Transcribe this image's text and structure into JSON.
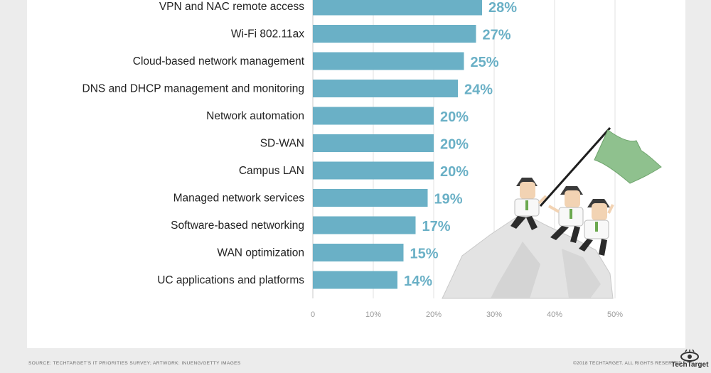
{
  "chart_data": {
    "type": "bar",
    "orientation": "horizontal",
    "categories": [
      "VPN and NAC remote access",
      "Wi-Fi 802.11ax",
      "Cloud-based network management",
      "DNS and DHCP management and monitoring",
      "Network automation",
      "SD-WAN",
      "Campus LAN",
      "Managed network services",
      "Software-based networking",
      "WAN optimization",
      "UC applications and platforms"
    ],
    "values": [
      28,
      27,
      25,
      24,
      20,
      20,
      20,
      19,
      17,
      15,
      14
    ],
    "value_labels": [
      "28%",
      "27%",
      "25%",
      "24%",
      "20%",
      "20%",
      "20%",
      "19%",
      "17%",
      "15%",
      "14%"
    ],
    "xlim": [
      0,
      50
    ],
    "xticks": [
      "0",
      "10%",
      "20%",
      "30%",
      "40%",
      "50%"
    ],
    "grid": true,
    "bar_color": "#6ab0c6",
    "label_color": "#6ab0c6"
  },
  "footer": {
    "source": "SOURCE: TECHTARGET'S IT PRIORITIES SURVEY; ARTWORK: INUENG/GETTY IMAGES",
    "copyright": "©2018 TECHTARGET. ALL RIGHTS RESERVED",
    "logo_text": "TechTarget"
  },
  "illustration": {
    "icon": "flag-climbers-illustration",
    "flag_color": "#8fc18e"
  }
}
